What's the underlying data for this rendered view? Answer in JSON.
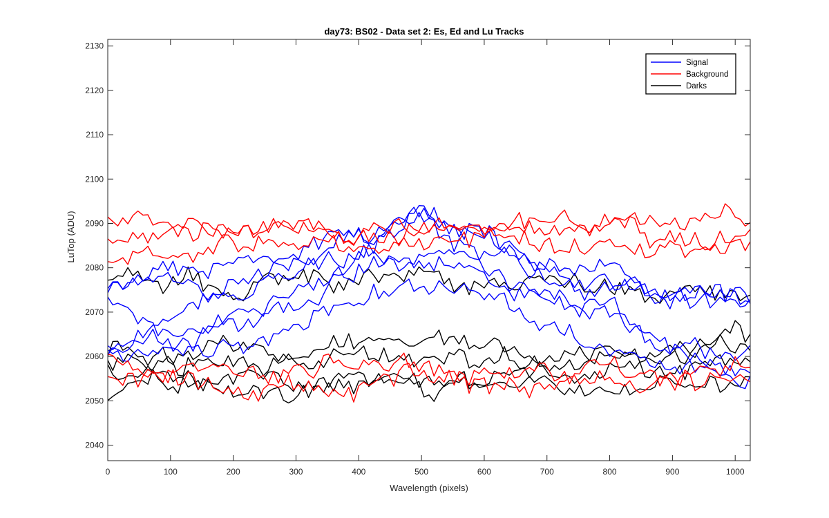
{
  "chart_data": {
    "type": "line",
    "title": "day73: BS02 - Data set 2: Es, Ed and Lu Tracks",
    "xlabel": "Wavelength (pixels)",
    "ylabel": "LuTop (ADU)",
    "xlim": [
      0,
      1024
    ],
    "ylim": [
      2036.5,
      2131.5
    ],
    "xticks": [
      0,
      100,
      200,
      300,
      400,
      500,
      600,
      700,
      800,
      900,
      1000
    ],
    "yticks": [
      2040,
      2050,
      2060,
      2070,
      2080,
      2090,
      2100,
      2110,
      2120,
      2130
    ],
    "grid": false,
    "legend_position": "top-right",
    "legend": [
      {
        "label": "Signal",
        "color": "#0000ff"
      },
      {
        "label": "Background",
        "color": "#ff0000"
      },
      {
        "label": "Darks",
        "color": "#000000"
      }
    ],
    "colors": {
      "Signal": "#0000ff",
      "Background": "#ff0000",
      "Darks": "#000000"
    },
    "x_sample_step": 8,
    "series": [
      {
        "group": "Signal",
        "color": "#0000ff",
        "x_knots": [
          0,
          100,
          200,
          300,
          400,
          500,
          600,
          700,
          800,
          900,
          1024
        ],
        "y_knots": [
          2073,
          2066,
          2070,
          2074,
          2082,
          2092,
          2088,
          2080,
          2074,
          2073,
          2073
        ]
      },
      {
        "group": "Signal",
        "color": "#0000ff",
        "x_knots": [
          0,
          100,
          200,
          300,
          400,
          500,
          600,
          700,
          800,
          900,
          1024
        ],
        "y_knots": [
          2077,
          2078,
          2074,
          2084,
          2088,
          2090,
          2084,
          2078,
          2076,
          2075,
          2073
        ]
      },
      {
        "group": "Signal",
        "color": "#0000ff",
        "x_knots": [
          0,
          100,
          200,
          300,
          400,
          500,
          600,
          700,
          800,
          900,
          1024
        ],
        "y_knots": [
          2061,
          2068,
          2076,
          2080,
          2088,
          2092,
          2086,
          2081,
          2077,
          2075,
          2074
        ]
      },
      {
        "group": "Signal",
        "color": "#0000ff",
        "x_knots": [
          0,
          100,
          200,
          300,
          400,
          500,
          600,
          700,
          800,
          900,
          1024
        ],
        "y_knots": [
          2062,
          2063,
          2068,
          2070,
          2079,
          2082,
          2080,
          2074,
          2070,
          2062,
          2060
        ]
      },
      {
        "group": "Signal",
        "color": "#0000ff",
        "x_knots": [
          0,
          100,
          200,
          300,
          400,
          500,
          600,
          700,
          800,
          900,
          1024
        ],
        "y_knots": [
          2060,
          2063,
          2062,
          2067,
          2074,
          2077,
          2074,
          2069,
          2062,
          2059,
          2056
        ]
      },
      {
        "group": "Signal",
        "color": "#0000ff",
        "x_knots": [
          0,
          100,
          200,
          300,
          400,
          500,
          600,
          700,
          800,
          900,
          1024
        ],
        "y_knots": [
          2075,
          2079,
          2082,
          2080,
          2083,
          2083,
          2078,
          2072,
          2068,
          2061,
          2055
        ]
      },
      {
        "group": "Background",
        "color": "#ff0000",
        "x_knots": [
          0,
          100,
          200,
          300,
          400,
          500,
          600,
          700,
          800,
          900,
          1024
        ],
        "y_knots": [
          2091,
          2090,
          2089,
          2089,
          2087,
          2090,
          2089,
          2089,
          2090,
          2090,
          2091
        ]
      },
      {
        "group": "Background",
        "color": "#ff0000",
        "x_knots": [
          0,
          100,
          200,
          300,
          400,
          500,
          600,
          700,
          800,
          900,
          1024
        ],
        "y_knots": [
          2085,
          2086,
          2088,
          2090,
          2087,
          2088,
          2087,
          2089,
          2088,
          2087,
          2089
        ]
      },
      {
        "group": "Background",
        "color": "#ff0000",
        "x_knots": [
          0,
          100,
          200,
          300,
          400,
          500,
          600,
          700,
          800,
          900,
          1024
        ],
        "y_knots": [
          2082,
          2083,
          2085,
          2086,
          2084,
          2086,
          2087,
          2086,
          2085,
          2084,
          2085
        ]
      },
      {
        "group": "Background",
        "color": "#ff0000",
        "x_knots": [
          0,
          100,
          200,
          300,
          400,
          500,
          600,
          700,
          800,
          900,
          1024
        ],
        "y_knots": [
          2055,
          2054,
          2052,
          2054,
          2053,
          2056,
          2054,
          2054,
          2053,
          2055,
          2056
        ]
      },
      {
        "group": "Background",
        "color": "#ff0000",
        "x_knots": [
          0,
          100,
          200,
          300,
          400,
          500,
          600,
          700,
          800,
          900,
          1024
        ],
        "y_knots": [
          2059,
          2056,
          2057,
          2056,
          2059,
          2058,
          2056,
          2057,
          2058,
          2056,
          2058
        ]
      },
      {
        "group": "Darks",
        "color": "#000000",
        "x_knots": [
          0,
          100,
          200,
          300,
          400,
          500,
          600,
          700,
          800,
          900,
          1024
        ],
        "y_knots": [
          2077,
          2077,
          2075,
          2076,
          2077,
          2078,
          2075,
          2078,
          2076,
          2075,
          2073
        ]
      },
      {
        "group": "Darks",
        "color": "#000000",
        "x_knots": [
          0,
          100,
          200,
          300,
          400,
          500,
          600,
          700,
          800,
          900,
          1024
        ],
        "y_knots": [
          2062,
          2061,
          2062,
          2060,
          2062,
          2064,
          2063,
          2060,
          2061,
          2062,
          2066
        ]
      },
      {
        "group": "Darks",
        "color": "#000000",
        "x_knots": [
          0,
          100,
          200,
          300,
          400,
          500,
          600,
          700,
          800,
          900,
          1024
        ],
        "y_knots": [
          2060,
          2059,
          2058,
          2057,
          2060,
          2059,
          2058,
          2059,
          2060,
          2061,
          2062
        ]
      },
      {
        "group": "Darks",
        "color": "#000000",
        "x_knots": [
          0,
          100,
          200,
          300,
          400,
          500,
          600,
          700,
          800,
          900,
          1024
        ],
        "y_knots": [
          2058,
          2056,
          2056,
          2055,
          2056,
          2056,
          2055,
          2056,
          2056,
          2058,
          2059
        ]
      },
      {
        "group": "Darks",
        "color": "#000000",
        "x_knots": [
          0,
          100,
          200,
          300,
          400,
          500,
          600,
          700,
          800,
          900,
          1024
        ],
        "y_knots": [
          2052,
          2054,
          2053,
          2052,
          2053,
          2053,
          2053,
          2054,
          2053,
          2054,
          2055
        ]
      }
    ]
  }
}
